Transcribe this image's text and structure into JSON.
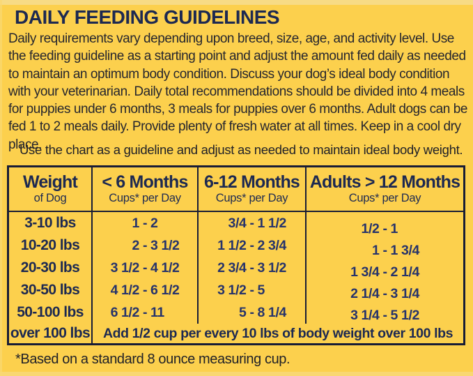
{
  "page": {
    "title": "DAILY FEEDING GUIDELINES",
    "intro": "Daily requirements vary depending upon breed, size, age, and activity level. Use the feeding guideline as a starting point and adjust the amount fed daily as needed to maintain an optimum body condition. Discuss your dog’s ideal body condition with your veterinarian. Daily total recommendations should be divided into 4 meals for puppies under 6 months, 3 meals for puppies over 6 months. Adult dogs can be fed 1 to 2 meals daily. Provide plenty of fresh water at all times. Keep in a cool dry place.",
    "guideline_note": "Use the chart as a guideline and adjust as needed to maintain ideal body weight.",
    "footnote": "*Based on a standard 8 ounce measuring cup."
  },
  "colors": {
    "background": "#fcd04d",
    "background_top_strip": "#f7db85",
    "navy_text": "#1d2951",
    "value_navy": "#26336b",
    "border": "#181c36",
    "body_text": "#26262e"
  },
  "table": {
    "range_separator": "-",
    "columns": [
      {
        "label": "Weight",
        "sublabel": "of Dog"
      },
      {
        "label": "< 6 Months",
        "sublabel": "Cups* per Day"
      },
      {
        "label": "6-12 Months",
        "sublabel": "Cups* per Day"
      },
      {
        "label": "Adults > 12 Months",
        "sublabel": "Cups* per Day"
      }
    ],
    "rows": [
      {
        "weight": "3-10 lbs",
        "under6": {
          "lo": "1",
          "hi": "2"
        },
        "m6to12": {
          "lo": "3/4",
          "hi": "1 1/2"
        },
        "adults": {
          "lo": "1/2",
          "hi": "1"
        }
      },
      {
        "weight": "10-20 lbs",
        "under6": {
          "lo": "2",
          "hi": "3 1/2"
        },
        "m6to12": {
          "lo": "1 1/2",
          "hi": "2 3/4"
        },
        "adults": {
          "lo": "1",
          "hi": "1 3/4"
        }
      },
      {
        "weight": "20-30 lbs",
        "under6": {
          "lo": "3 1/2",
          "hi": "4 1/2"
        },
        "m6to12": {
          "lo": "2 3/4",
          "hi": "3 1/2"
        },
        "adults": {
          "lo": "1 3/4",
          "hi": "2 1/4"
        }
      },
      {
        "weight": "30-50 lbs",
        "under6": {
          "lo": "4 1/2",
          "hi": "6 1/2"
        },
        "m6to12": {
          "lo": "3 1/2",
          "hi": "5"
        },
        "adults": {
          "lo": "2 1/4",
          "hi": "3 1/4"
        }
      },
      {
        "weight": "50-100 lbs",
        "under6": {
          "lo": "6 1/2",
          "hi": "11"
        },
        "m6to12": {
          "lo": "5",
          "hi": "8 1/4"
        },
        "adults": {
          "lo": "3 1/4",
          "hi": "5 1/2"
        }
      }
    ],
    "over_row": {
      "weight": "over 100 lbs",
      "note": "Add 1/2 cup per every 10 lbs of body weight over 100 lbs"
    }
  }
}
